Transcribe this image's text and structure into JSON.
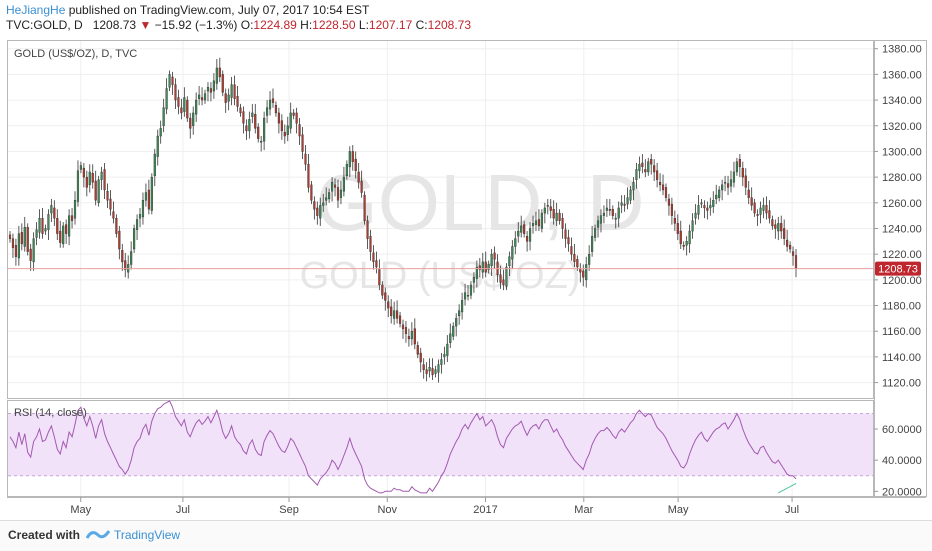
{
  "header": {
    "user": "HeJiangHe",
    "published": " published on TradingView.com, July 07, 2017 10:54 EST",
    "symbol": "TVC:GOLD, D",
    "last": "1208.73",
    "change": "−15.92 (−1.3%)",
    "o_label": "O:",
    "o_val": "1224.89",
    "h_label": "H:",
    "h_val": "1228.50",
    "l_label": "L:",
    "l_val": "1207.17",
    "c_label": "C:",
    "c_val": "1208.73"
  },
  "footer": {
    "created_with": "Created with",
    "brand": "TradingView"
  },
  "colors": {
    "up": "#3c8a55",
    "down": "#b03a2e",
    "rsi": "#a35ab0",
    "rsi_band": "#f1e2fa",
    "price_line": "#e8a0a0",
    "label_bg": "#c0262d"
  },
  "chart_data": [
    {
      "type": "candlestick",
      "title": "GOLD (US$/OZ), D, TVC",
      "watermark_symbol": "GOLD, D",
      "watermark_desc": "GOLD (US$/OZ)",
      "x_ticks": [
        "May",
        "Jul",
        "Sep",
        "Nov",
        "2017",
        "Mar",
        "May",
        "Jul"
      ],
      "y_ticks": [
        "1120.00",
        "1140.00",
        "1160.00",
        "1180.00",
        "1200.00",
        "1220.00",
        "1240.00",
        "1260.00",
        "1280.00",
        "1300.00",
        "1320.00",
        "1340.00",
        "1360.00",
        "1380.00"
      ],
      "ylim": [
        1108,
        1386
      ],
      "last_price": 1208.73,
      "last_price_label": "1208.73",
      "series": [
        {
          "name": "close",
          "values": [
            1232,
            1225,
            1218,
            1236,
            1228,
            1241,
            1222,
            1215,
            1232,
            1239,
            1248,
            1236,
            1240,
            1251,
            1258,
            1248,
            1236,
            1229,
            1242,
            1236,
            1250,
            1246,
            1262,
            1285,
            1289,
            1280,
            1272,
            1284,
            1276,
            1262,
            1278,
            1284,
            1270,
            1262,
            1255,
            1248,
            1236,
            1224,
            1214,
            1208,
            1212,
            1222,
            1240,
            1247,
            1251,
            1262,
            1268,
            1255,
            1280,
            1298,
            1312,
            1318,
            1334,
            1349,
            1360,
            1352,
            1340,
            1335,
            1330,
            1342,
            1326,
            1318,
            1330,
            1340,
            1344,
            1340,
            1345,
            1350,
            1346,
            1355,
            1365,
            1358,
            1346,
            1338,
            1344,
            1352,
            1341,
            1335,
            1330,
            1322,
            1316,
            1325,
            1330,
            1318,
            1310,
            1308,
            1326,
            1334,
            1340,
            1338,
            1330,
            1322,
            1316,
            1312,
            1320,
            1330,
            1328,
            1322,
            1312,
            1300,
            1290,
            1272,
            1262,
            1255,
            1250,
            1258,
            1260,
            1264,
            1268,
            1276,
            1272,
            1262,
            1270,
            1280,
            1290,
            1300,
            1292,
            1285,
            1276,
            1268,
            1246,
            1232,
            1222,
            1214,
            1210,
            1196,
            1188,
            1184,
            1178,
            1172,
            1176,
            1170,
            1166,
            1162,
            1158,
            1154,
            1160,
            1150,
            1142,
            1136,
            1130,
            1127,
            1132,
            1126,
            1130,
            1134,
            1138,
            1142,
            1150,
            1158,
            1164,
            1170,
            1176,
            1184,
            1190,
            1188,
            1196,
            1202,
            1210,
            1208,
            1214,
            1206,
            1212,
            1220,
            1216,
            1204,
            1198,
            1196,
            1210,
            1218,
            1226,
            1232,
            1238,
            1242,
            1236,
            1230,
            1240,
            1244,
            1246,
            1242,
            1252,
            1256,
            1258,
            1254,
            1248,
            1252,
            1246,
            1240,
            1232,
            1228,
            1220,
            1214,
            1210,
            1206,
            1202,
            1212,
            1220,
            1234,
            1240,
            1246,
            1250,
            1252,
            1256,
            1254,
            1250,
            1248,
            1256,
            1260,
            1258,
            1264,
            1270,
            1276,
            1286,
            1290,
            1288,
            1284,
            1292,
            1290,
            1284,
            1278,
            1274,
            1270,
            1264,
            1258,
            1250,
            1244,
            1236,
            1228,
            1226,
            1230,
            1238,
            1246,
            1252,
            1258,
            1260,
            1256,
            1254,
            1258,
            1262,
            1266,
            1270,
            1274,
            1276,
            1272,
            1278,
            1284,
            1292,
            1288,
            1280,
            1272,
            1264,
            1258,
            1252,
            1250,
            1256,
            1258,
            1252,
            1248,
            1242,
            1240,
            1244,
            1238,
            1232,
            1226,
            1224,
            1219,
            1209
          ]
        }
      ]
    },
    {
      "type": "line",
      "title": "RSI (14, close)",
      "y_ticks": [
        "20.0000",
        "40.0000",
        "60.0000"
      ],
      "ylim": [
        17,
        78
      ],
      "band": [
        30,
        70
      ],
      "series": [
        {
          "name": "RSI",
          "values": [
            55,
            52,
            48,
            58,
            50,
            57,
            45,
            42,
            52,
            55,
            60,
            52,
            53,
            58,
            62,
            55,
            47,
            44,
            52,
            48,
            58,
            55,
            63,
            72,
            74,
            67,
            62,
            68,
            62,
            54,
            62,
            66,
            57,
            52,
            48,
            44,
            40,
            36,
            34,
            31,
            34,
            40,
            48,
            52,
            54,
            60,
            63,
            56,
            65,
            70,
            73,
            74,
            76,
            77,
            78,
            74,
            68,
            65,
            62,
            66,
            58,
            55,
            60,
            64,
            66,
            63,
            65,
            68,
            64,
            68,
            72,
            66,
            58,
            54,
            57,
            62,
            55,
            52,
            50,
            46,
            44,
            50,
            53,
            47,
            44,
            43,
            52,
            56,
            59,
            57,
            53,
            49,
            46,
            45,
            49,
            54,
            52,
            48,
            44,
            40,
            36,
            30,
            28,
            26,
            24,
            28,
            30,
            32,
            35,
            40,
            38,
            34,
            38,
            43,
            48,
            54,
            48,
            44,
            40,
            36,
            28,
            24,
            22,
            21,
            20,
            19,
            19,
            20,
            20,
            20,
            22,
            21,
            21,
            20,
            20,
            20,
            23,
            21,
            20,
            19,
            19,
            19,
            22,
            20,
            23,
            26,
            30,
            33,
            38,
            44,
            48,
            52,
            55,
            60,
            63,
            60,
            64,
            67,
            70,
            66,
            68,
            62,
            64,
            66,
            62,
            55,
            50,
            48,
            54,
            57,
            60,
            62,
            63,
            65,
            60,
            56,
            60,
            62,
            63,
            60,
            64,
            66,
            66,
            62,
            58,
            60,
            56,
            53,
            49,
            46,
            43,
            40,
            38,
            36,
            34,
            40,
            44,
            50,
            54,
            57,
            59,
            59,
            61,
            59,
            56,
            54,
            58,
            60,
            58,
            61,
            64,
            66,
            70,
            72,
            70,
            68,
            70,
            69,
            65,
            61,
            59,
            57,
            54,
            50,
            46,
            43,
            40,
            36,
            35,
            38,
            44,
            49,
            53,
            56,
            58,
            54,
            52,
            55,
            58,
            60,
            61,
            63,
            64,
            60,
            63,
            66,
            70,
            66,
            60,
            55,
            51,
            48,
            45,
            44,
            48,
            49,
            45,
            42,
            39,
            38,
            40,
            37,
            34,
            31,
            30,
            30,
            28
          ]
        },
        {
          "name": "RSI signal",
          "values": [
            null,
            null,
            null,
            null,
            null,
            null,
            null,
            null,
            null,
            null,
            null,
            null,
            null,
            null,
            null,
            null,
            null,
            null,
            null,
            null,
            null,
            null,
            null,
            null,
            null,
            null,
            null,
            null,
            null,
            null,
            null,
            null,
            null,
            null,
            null,
            null,
            null,
            null,
            null,
            null,
            null,
            null,
            null,
            null,
            null,
            null,
            null,
            null,
            null,
            null,
            null,
            null,
            null,
            null,
            null,
            null,
            null,
            null,
            null,
            null,
            null,
            null,
            null,
            null,
            null,
            null,
            null,
            null,
            null,
            null,
            null,
            null,
            null,
            null,
            null,
            null,
            null,
            null,
            null,
            null,
            null,
            null,
            null,
            null,
            null,
            null,
            null,
            null,
            null,
            null,
            null,
            null,
            null,
            null,
            null,
            null,
            null,
            null,
            null,
            null,
            null,
            null,
            null,
            null,
            null,
            null,
            null,
            null,
            null,
            null,
            null,
            null,
            null,
            null,
            null,
            null,
            null,
            null,
            null,
            null,
            null,
            null,
            null,
            null,
            null,
            null,
            null,
            null,
            null,
            null,
            null,
            null,
            null,
            null,
            null,
            null,
            null,
            null,
            null,
            null,
            null,
            null,
            null,
            null,
            null,
            null,
            null,
            null,
            null,
            null,
            null,
            null,
            null,
            null,
            null,
            null,
            null,
            null,
            null,
            null,
            null,
            null,
            null,
            null,
            null,
            null,
            null,
            null,
            null,
            null,
            null,
            null,
            null,
            null,
            null,
            null,
            null,
            null,
            null,
            null,
            null,
            null,
            null,
            null,
            null,
            null,
            null,
            null,
            null,
            null,
            null,
            null,
            null,
            null,
            null,
            null,
            null,
            null,
            null,
            null,
            null,
            null,
            null,
            null,
            null,
            null,
            null,
            null,
            null,
            null,
            null,
            null,
            null,
            null,
            null,
            null,
            null,
            null,
            null,
            null,
            null,
            null,
            null,
            null,
            null,
            null,
            null,
            null,
            null,
            null,
            null,
            null,
            null,
            null,
            null,
            null,
            null,
            null,
            null,
            null,
            null,
            null,
            null,
            null,
            null,
            null,
            null,
            null,
            null,
            null,
            null,
            null,
            null,
            null,
            null,
            null,
            null,
            null,
            null,
            null,
            19,
            20,
            21,
            22,
            23,
            24,
            25
          ]
        }
      ]
    }
  ]
}
